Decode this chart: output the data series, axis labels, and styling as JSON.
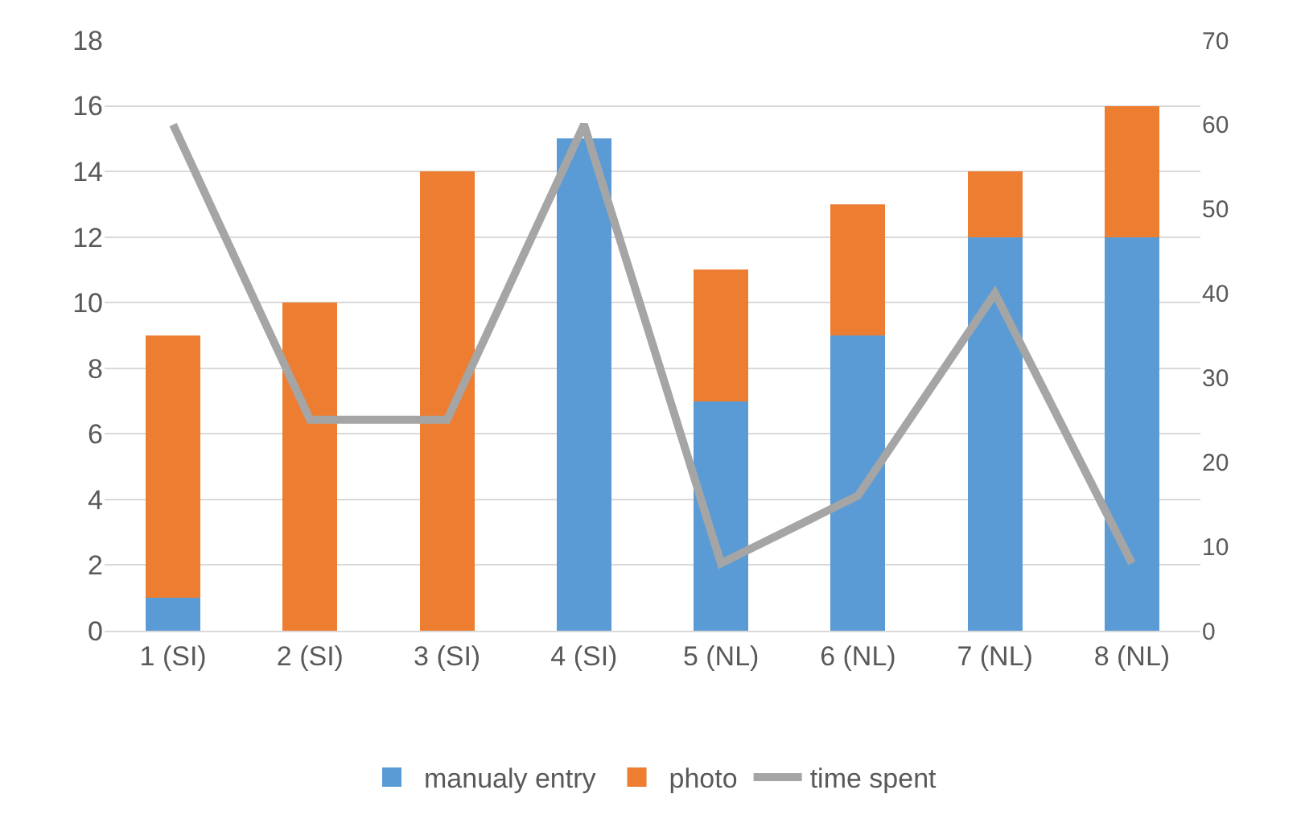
{
  "chart_data": {
    "type": "bar",
    "stacked": true,
    "categories": [
      "1 (SI)",
      "2 (SI)",
      "3 (SI)",
      "4 (SI)",
      "5 (NL)",
      "6 (NL)",
      "7 (NL)",
      "8 (NL)"
    ],
    "series": [
      {
        "name": "manualy entry",
        "color": "#5b9bd5",
        "values": [
          1,
          0,
          0,
          15,
          7,
          9,
          12,
          12
        ]
      },
      {
        "name": "photo",
        "color": "#ed7d31",
        "values": [
          8,
          10,
          14,
          0,
          4,
          4,
          2,
          4
        ]
      },
      {
        "name": "time spent",
        "type": "line",
        "axis": "y2",
        "color": "#a5a5a5",
        "values": [
          60,
          25,
          25,
          60,
          8,
          16,
          40,
          8
        ]
      }
    ],
    "ylim": [
      0,
      18
    ],
    "yticks": [
      0,
      2,
      4,
      6,
      8,
      10,
      12,
      14,
      16,
      18
    ],
    "y2lim": [
      0,
      70
    ],
    "y2ticks": [
      0,
      10,
      20,
      30,
      40,
      50,
      60,
      70
    ],
    "grid": "y",
    "legend": "bottom",
    "marker": "none",
    "line_style": "solid"
  }
}
